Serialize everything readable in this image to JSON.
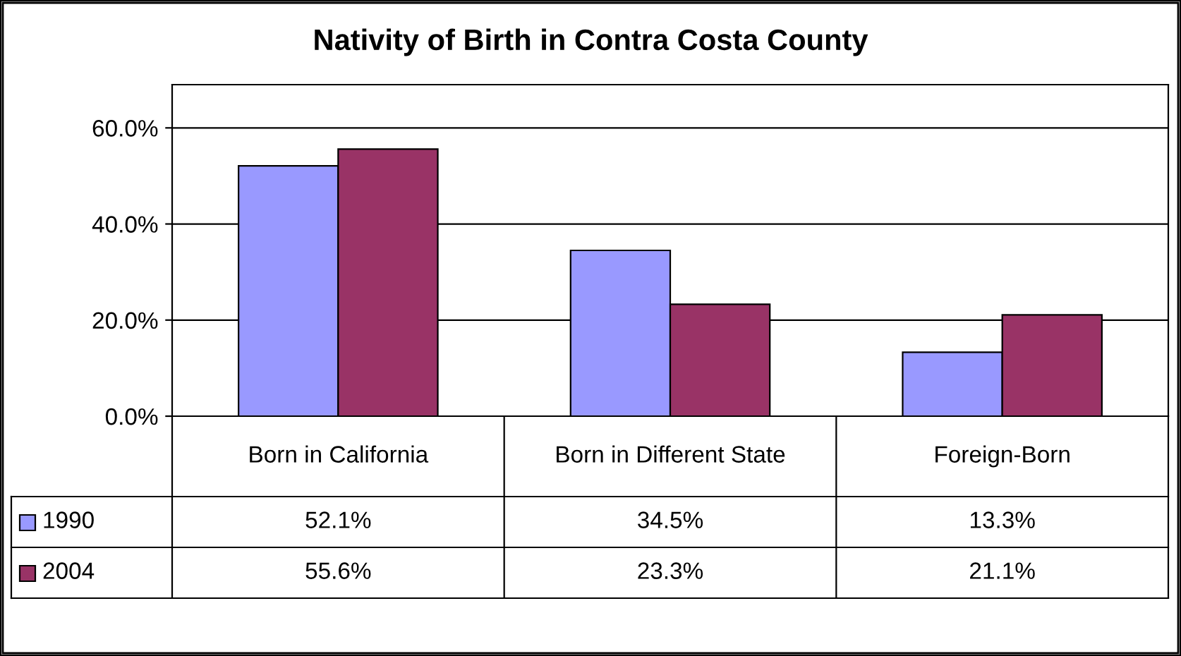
{
  "chart_data": {
    "type": "bar",
    "title": "Nativity of Birth in Contra Costa County",
    "categories": [
      "Born in California",
      "Born in Different State",
      "Foreign-Born"
    ],
    "series": [
      {
        "name": "1990",
        "color": "#9999ff",
        "values": [
          52.1,
          34.5,
          13.3
        ],
        "value_labels": [
          "52.1%",
          "34.5%",
          "13.3%"
        ]
      },
      {
        "name": "2004",
        "color": "#993366",
        "values": [
          55.6,
          23.3,
          21.1
        ],
        "value_labels": [
          "55.6%",
          "23.3%",
          "21.1%"
        ]
      }
    ],
    "ylim": [
      0,
      69
    ],
    "yticks": [
      {
        "value": 0,
        "label": "0.0%"
      },
      {
        "value": 20,
        "label": "20.0%"
      },
      {
        "value": 40,
        "label": "40.0%"
      },
      {
        "value": 60,
        "label": "60.0%"
      }
    ],
    "grid": "y",
    "legend": "bottom left"
  }
}
